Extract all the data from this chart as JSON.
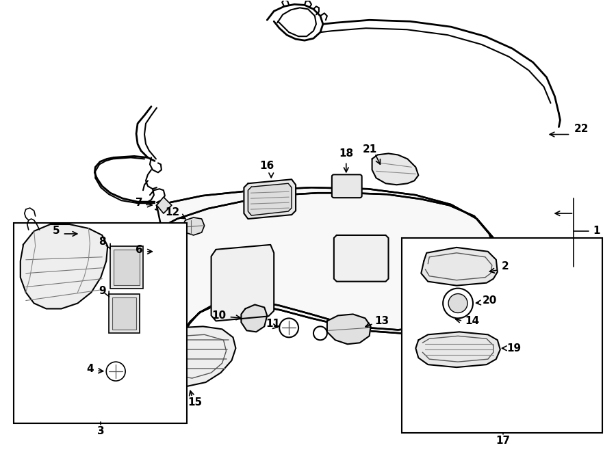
{
  "bg_color": "#ffffff",
  "fig_width": 9.0,
  "fig_height": 6.61,
  "label_fontsize": 11,
  "label_fontweight": "bold"
}
